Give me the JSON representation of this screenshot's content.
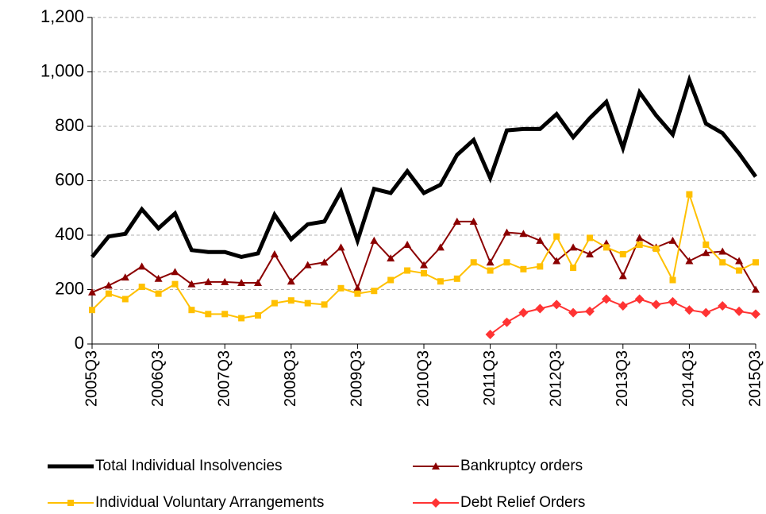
{
  "chart_data": {
    "type": "line",
    "categories": [
      "2005Q3",
      null,
      null,
      null,
      "2006Q3",
      null,
      null,
      null,
      "2007Q3",
      null,
      null,
      null,
      "2008Q3",
      null,
      null,
      null,
      "2009Q3",
      null,
      null,
      null,
      "2010Q3",
      null,
      null,
      null,
      "2011Q3",
      null,
      null,
      null,
      "2012Q3",
      null,
      null,
      null,
      "2013Q3",
      null,
      null,
      null,
      "2014Q3",
      null,
      null,
      null,
      "2015Q3"
    ],
    "series": [
      {
        "name": "Total Individual Insolvencies",
        "color": "#000000",
        "line_width": 5,
        "marker": "none",
        "values": [
          320,
          395,
          405,
          495,
          425,
          480,
          345,
          338,
          338,
          320,
          333,
          475,
          385,
          440,
          450,
          560,
          380,
          570,
          555,
          635,
          555,
          585,
          695,
          750,
          610,
          785,
          790,
          790,
          845,
          760,
          830,
          890,
          720,
          925,
          840,
          770,
          970,
          810,
          775,
          700,
          615
        ]
      },
      {
        "name": "Bankruptcy orders",
        "color": "#8b0000",
        "line_width": 2,
        "marker": "triangle",
        "values": [
          190,
          215,
          245,
          285,
          240,
          265,
          220,
          228,
          228,
          225,
          225,
          330,
          230,
          290,
          300,
          355,
          205,
          380,
          315,
          365,
          290,
          355,
          450,
          450,
          300,
          410,
          405,
          380,
          305,
          355,
          330,
          370,
          250,
          390,
          355,
          380,
          305,
          335,
          340,
          305,
          200
        ]
      },
      {
        "name": "Individual Voluntary Arrangements",
        "color": "#ffc000",
        "line_width": 2,
        "marker": "square",
        "values": [
          125,
          185,
          165,
          210,
          185,
          220,
          125,
          110,
          110,
          95,
          105,
          150,
          160,
          150,
          145,
          205,
          185,
          195,
          235,
          270,
          260,
          230,
          240,
          300,
          270,
          300,
          275,
          285,
          395,
          280,
          390,
          355,
          330,
          365,
          350,
          235,
          550,
          365,
          300,
          270,
          300
        ]
      },
      {
        "name": "Debt Relief Orders",
        "color": "#ff3333",
        "line_width": 2,
        "marker": "diamond",
        "values": [
          null,
          null,
          null,
          null,
          null,
          null,
          null,
          null,
          null,
          null,
          null,
          null,
          null,
          null,
          null,
          null,
          null,
          null,
          null,
          null,
          null,
          null,
          null,
          null,
          35,
          80,
          115,
          130,
          145,
          115,
          120,
          165,
          140,
          165,
          145,
          155,
          125,
          115,
          140,
          120,
          110
        ]
      }
    ],
    "ylim": [
      0,
      1200
    ],
    "yticks": [
      0,
      200,
      400,
      600,
      800,
      {
        "value": 1000,
        "label": "1,000"
      },
      {
        "value": 1200,
        "label": "1,200"
      }
    ],
    "grid": true
  }
}
